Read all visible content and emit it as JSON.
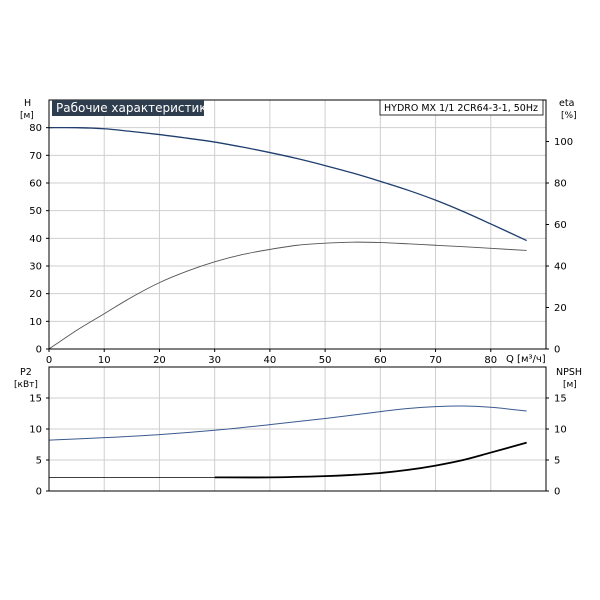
{
  "chart_data": [
    {
      "type": "line",
      "title": "Рабочие характеристики",
      "model": "HYDRO MX 1/1 2CR64-3-1, 50Hz",
      "xlabel": "Q [м³/ч]",
      "ylabel_left": "H",
      "ylabel_left_unit": "[м]",
      "ylabel_right": "eta",
      "ylabel_right_unit": "[%]",
      "xlim": [
        0,
        90
      ],
      "ylim_left": [
        0,
        90
      ],
      "ylim_right": [
        0,
        120
      ],
      "x_ticks": [
        "0",
        "10",
        "20",
        "30",
        "40",
        "50",
        "60",
        "70",
        "80"
      ],
      "y_ticks_left": [
        "0",
        "10",
        "20",
        "30",
        "40",
        "50",
        "60",
        "70",
        "80"
      ],
      "y_ticks_right": [
        "0",
        "20",
        "40",
        "60",
        "80",
        "100"
      ],
      "grid": true,
      "series": [
        {
          "color": "#1f3e6e",
          "axis": "left",
          "x": [
            0,
            5,
            10,
            15,
            20,
            25,
            30,
            35,
            40,
            45,
            50,
            55,
            60,
            65,
            70,
            75,
            80,
            86.5
          ],
          "values": [
            80,
            80,
            79.6,
            78.6,
            77.5,
            76.2,
            74.8,
            73.0,
            71.0,
            68.8,
            66.3,
            63.6,
            60.6,
            57.4,
            53.8,
            49.7,
            45.2,
            39.2
          ]
        },
        {
          "color": "#555555",
          "axis": "right",
          "x": [
            0,
            5,
            10,
            15,
            20,
            25,
            30,
            35,
            40,
            45,
            50,
            55,
            60,
            65,
            70,
            75,
            80,
            86.5
          ],
          "values": [
            0,
            9,
            17,
            25,
            32,
            37.5,
            42,
            45.5,
            48,
            50,
            51,
            51.5,
            51.3,
            50.7,
            50,
            49.3,
            48.5,
            47.5
          ]
        }
      ]
    },
    {
      "type": "line",
      "ylabel_left": "P2",
      "ylabel_left_unit": "[кВт]",
      "ylabel_right": "NPSH",
      "ylabel_right_unit": "[м]",
      "xlim": [
        0,
        90
      ],
      "ylim_left": [
        0,
        20
      ],
      "ylim_right": [
        0,
        20
      ],
      "y_ticks_left": [
        "0",
        "5",
        "10",
        "15"
      ],
      "y_ticks_right": [
        "0",
        "5",
        "10",
        "15"
      ],
      "grid": true,
      "series": [
        {
          "color": "#3a5a90",
          "axis": "left",
          "x": [
            0,
            10,
            20,
            30,
            40,
            50,
            60,
            65,
            70,
            75,
            80,
            86.5
          ],
          "values": [
            8.2,
            8.6,
            9.1,
            9.8,
            10.7,
            11.7,
            12.8,
            13.3,
            13.6,
            13.7,
            13.5,
            12.9
          ]
        },
        {
          "color": "#000000",
          "axis": "right",
          "x": [
            30,
            40,
            50,
            55,
            60,
            65,
            70,
            75,
            80,
            86.5
          ],
          "values": [
            2.2,
            2.2,
            2.4,
            2.6,
            2.9,
            3.4,
            4.1,
            5.0,
            6.2,
            7.8
          ]
        },
        {
          "color": "#000000",
          "axis": "right",
          "x": [
            0,
            30
          ],
          "values": [
            2.2,
            2.2
          ]
        }
      ]
    }
  ]
}
